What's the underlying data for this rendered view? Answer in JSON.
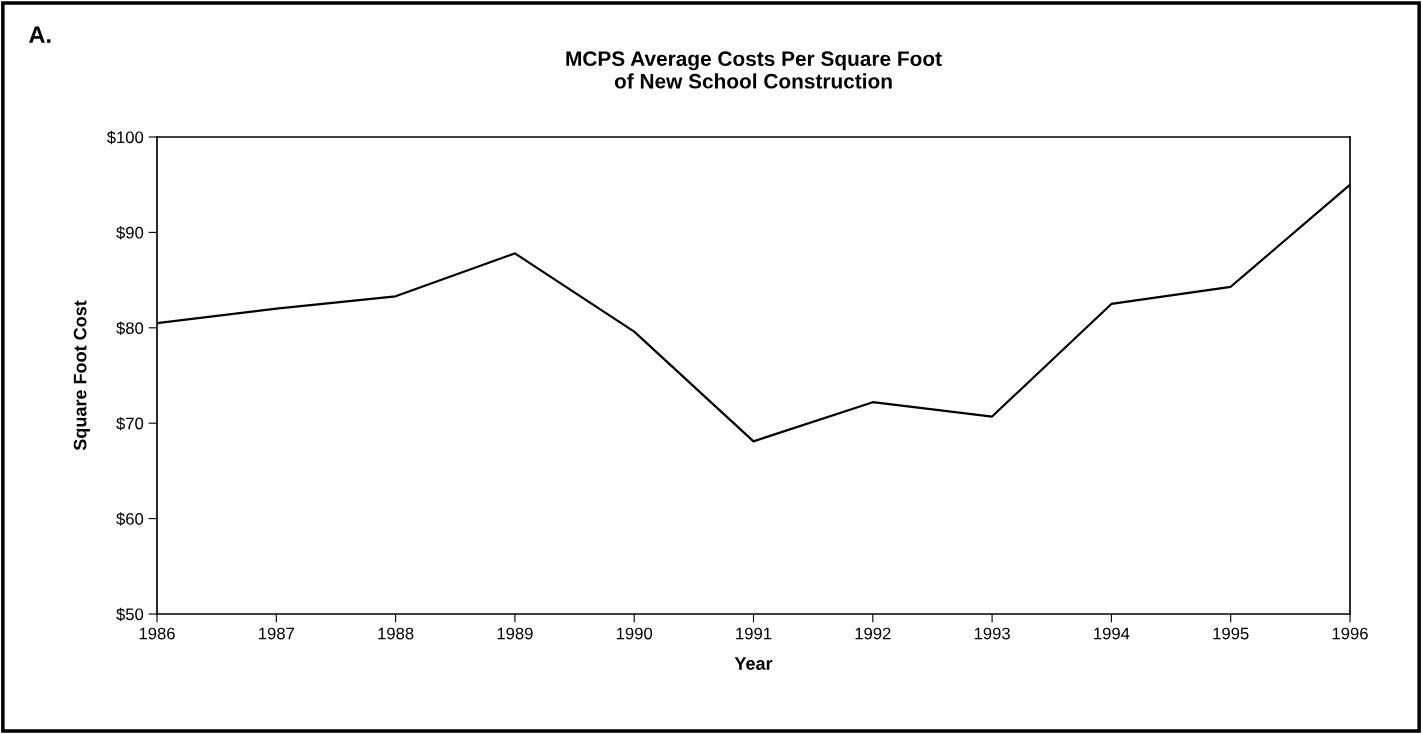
{
  "chart_data": {
    "type": "line",
    "title": "MCPS Average Costs Per Square Foot\nof New School Construction",
    "annotations": [
      "A."
    ],
    "xlabel": "Year",
    "ylabel": "Square Foot Cost",
    "x": [
      1986,
      1987,
      1988,
      1989,
      1990,
      1991,
      1992,
      1993,
      1994,
      1995,
      1996
    ],
    "series": [
      {
        "color": "#000000",
        "values": [
          80.5,
          82.0,
          83.3,
          87.8,
          79.6,
          68.1,
          72.2,
          70.7,
          82.5,
          84.3,
          95.0
        ]
      }
    ],
    "xlim": [
      1986,
      1996
    ],
    "xticks": [
      1986,
      1987,
      1988,
      1989,
      1990,
      1991,
      1992,
      1993,
      1994,
      1995,
      1996
    ],
    "ylim": [
      50,
      100
    ],
    "yticks": [
      {
        "value": 50,
        "label": "$50"
      },
      {
        "value": 60,
        "label": "$60"
      },
      {
        "value": 70,
        "label": "$70"
      },
      {
        "value": 80,
        "label": "$80"
      },
      {
        "value": 90,
        "label": "$90"
      },
      {
        "value": 100,
        "label": "$100"
      }
    ],
    "grid": false,
    "marker": "none",
    "line_style": "solid"
  }
}
